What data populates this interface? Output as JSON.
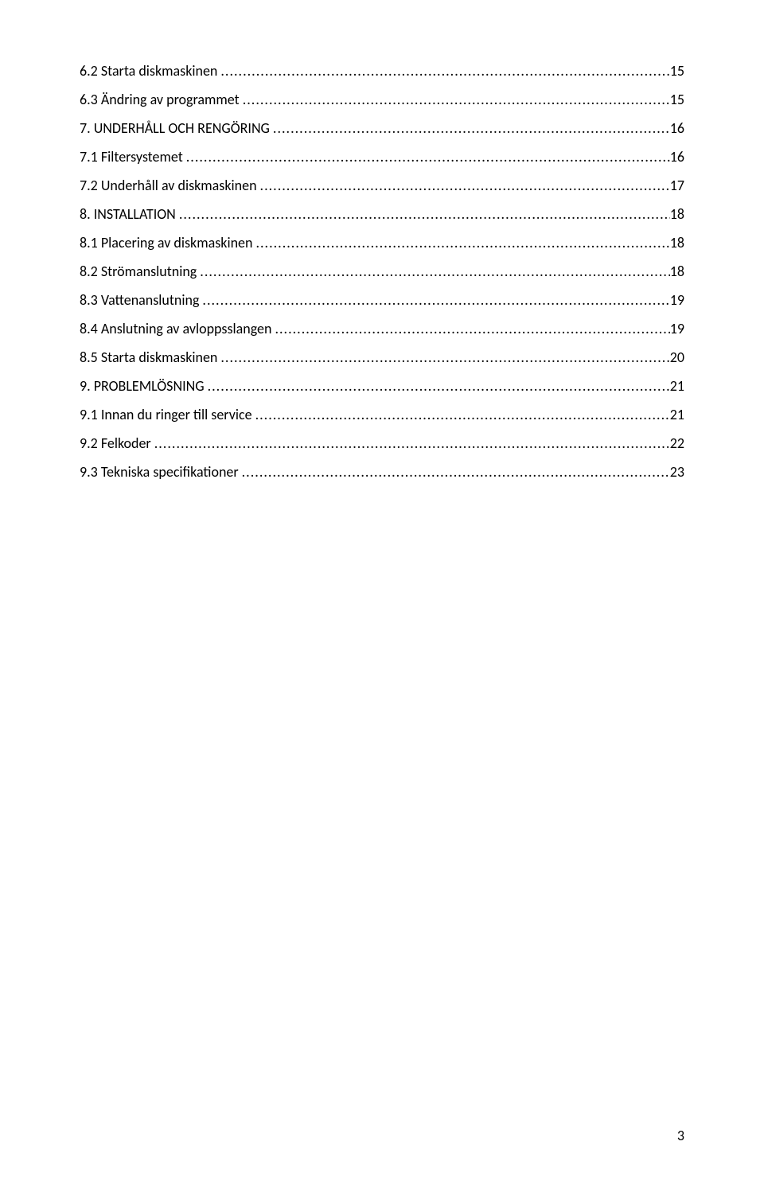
{
  "toc": {
    "entries": [
      {
        "text": "6.2  Starta diskmaskinen",
        "page": "15"
      },
      {
        "text": "6.3 Ändring av programmet",
        "page": "15"
      },
      {
        "text": "7. UNDERHÅLL OCH RENGÖRING",
        "page": "16"
      },
      {
        "text": "7.1 Filtersystemet",
        "page": "16"
      },
      {
        "text": "7.2 Underhåll av diskmaskinen",
        "page": "17"
      },
      {
        "text": "8. INSTALLATION",
        "page": "18"
      },
      {
        "text": "8.1 Placering av diskmaskinen",
        "page": "18"
      },
      {
        "text": "8.2 Strömanslutning",
        "page": "18"
      },
      {
        "text": "8.3 Vattenanslutning",
        "page": "19"
      },
      {
        "text": "8.4 Anslutning av avloppsslangen",
        "page": "19"
      },
      {
        "text": "8.5 Starta diskmaskinen",
        "page": "20"
      },
      {
        "text": "9. PROBLEMLÖSNING",
        "page": "21"
      },
      {
        "text": "9.1 Innan du ringer till service",
        "page": "21"
      },
      {
        "text": "9.2 Felkoder",
        "page": "22"
      },
      {
        "text": "9.3 Tekniska specifikationer",
        "page": "23"
      }
    ]
  },
  "page_number": "3",
  "leader_dots": "...................................................................................................................................................................................................................."
}
